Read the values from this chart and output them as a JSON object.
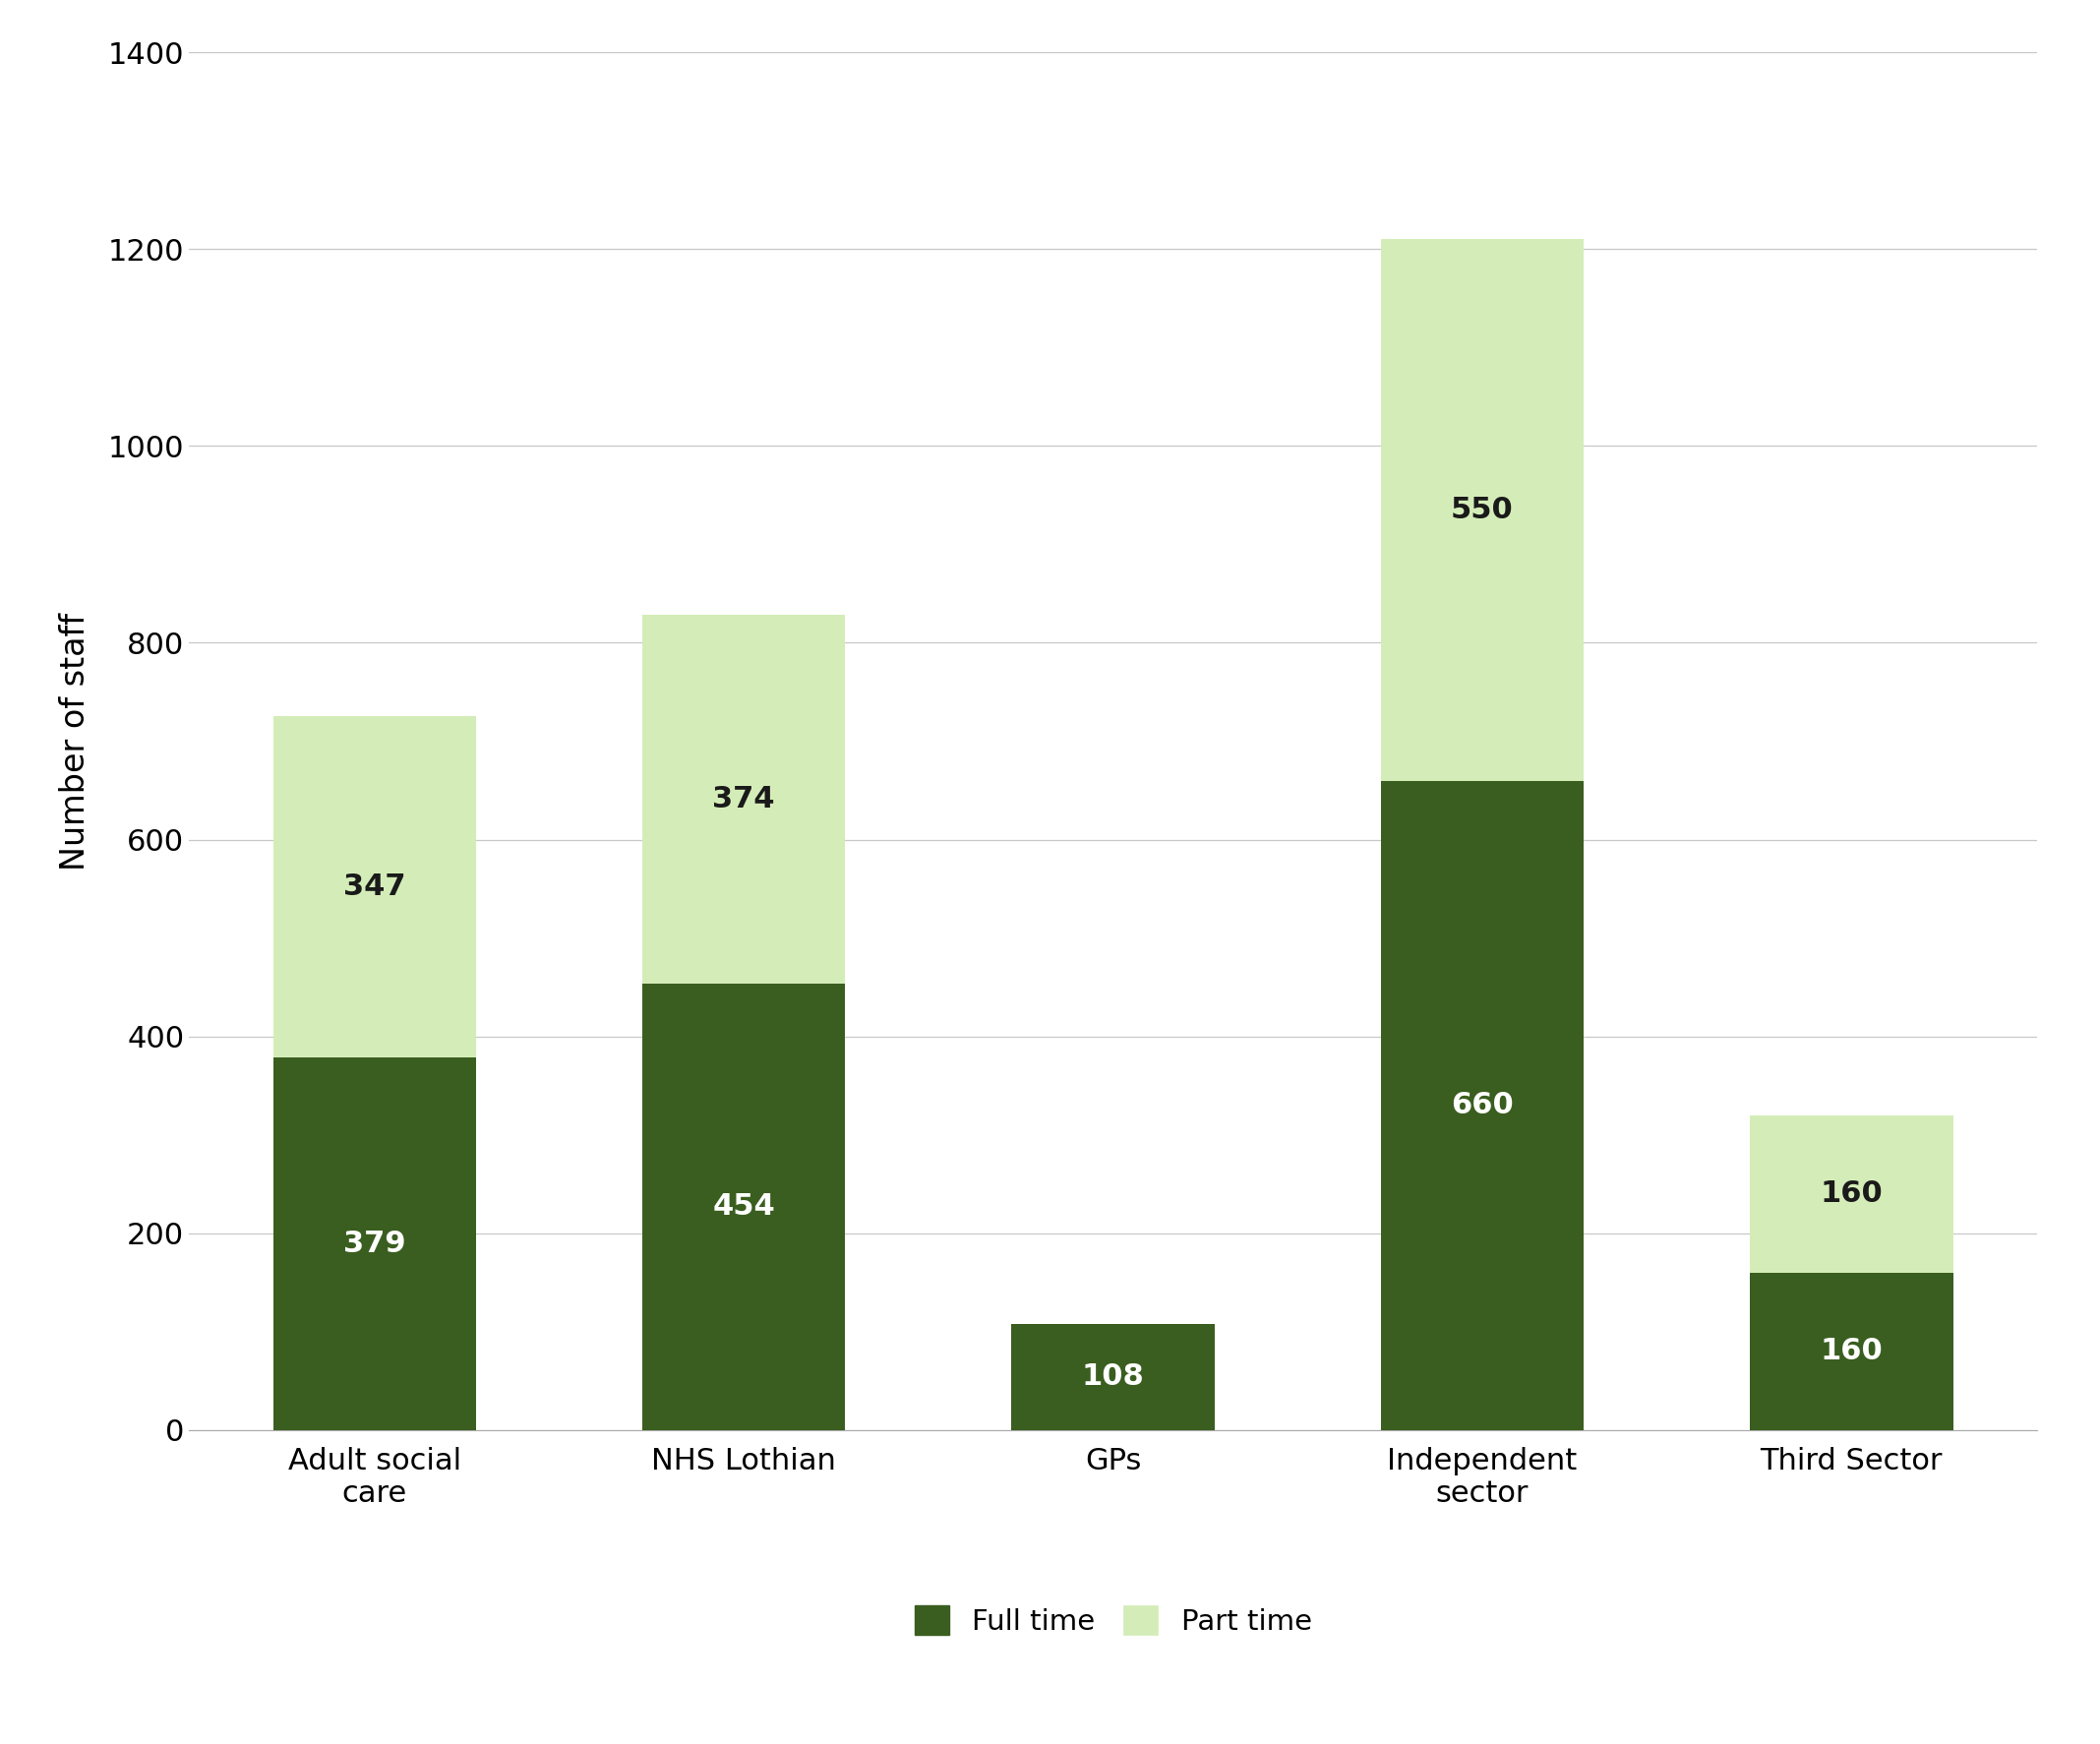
{
  "categories": [
    "Adult social\ncare",
    "NHS Lothian",
    "GPs",
    "Independent\nsector",
    "Third Sector"
  ],
  "full_time": [
    379,
    454,
    108,
    660,
    160
  ],
  "part_time": [
    347,
    374,
    0,
    550,
    160
  ],
  "full_time_color": "#3a5e1f",
  "part_time_color": "#d4edb8",
  "ylabel": "Number of staff",
  "ylim": [
    0,
    1400
  ],
  "yticks": [
    0,
    200,
    400,
    600,
    800,
    1000,
    1200,
    1400
  ],
  "legend_full_time": "Full time",
  "legend_part_time": "Part time",
  "bar_width": 0.55,
  "tick_fontsize": 22,
  "ylabel_fontsize": 24,
  "legend_fontsize": 21,
  "value_label_fontsize": 22,
  "background_color": "#ffffff",
  "grid_color": "#c8c8c8"
}
